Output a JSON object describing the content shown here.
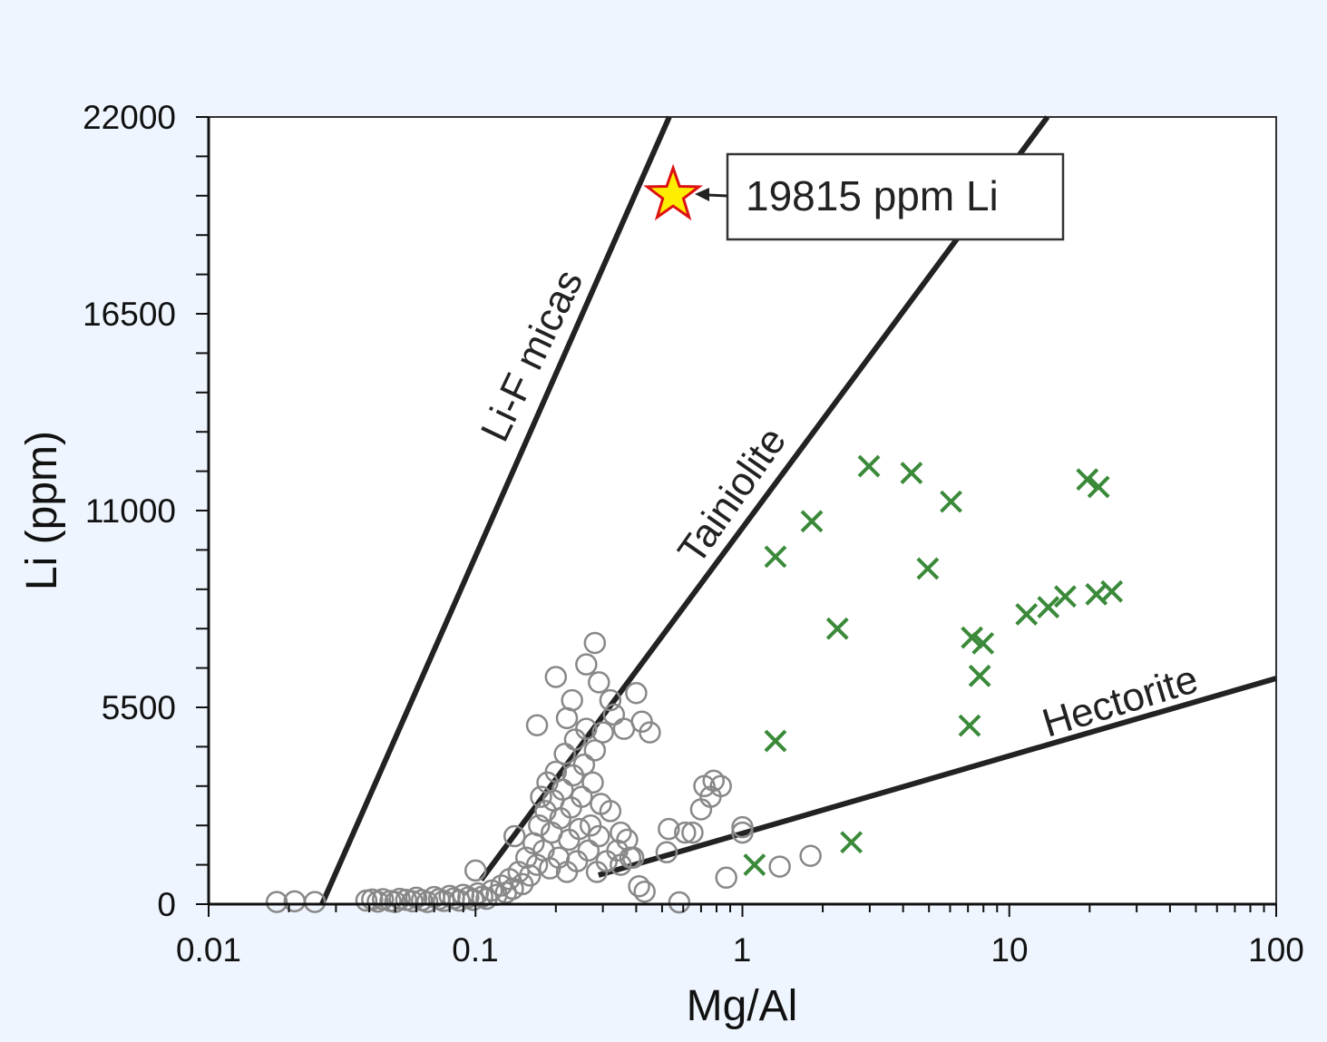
{
  "chart_data": {
    "type": "scatter",
    "xlabel": "Mg/Al",
    "ylabel": "Li (ppm)",
    "xscale": "log",
    "xlim": [
      0.01,
      100
    ],
    "ylim": [
      0,
      22000
    ],
    "x_ticks": [
      {
        "value": 0.01,
        "label": "0.01"
      },
      {
        "value": 0.1,
        "label": "0.1"
      },
      {
        "value": 1,
        "label": "1"
      },
      {
        "value": 10,
        "label": "10"
      },
      {
        "value": 100,
        "label": "100"
      }
    ],
    "y_ticks": [
      {
        "value": 0,
        "label": "0"
      },
      {
        "value": 5500,
        "label": "5500"
      },
      {
        "value": 11000,
        "label": "11000"
      },
      {
        "value": 16500,
        "label": "16500"
      },
      {
        "value": 22000,
        "label": "22000"
      }
    ],
    "y_minor_step": 1100,
    "grid": false,
    "colors": {
      "background": "#eef5fe",
      "plot_bg": "#ffffff",
      "circles": "#888888",
      "crosses": "#3a8a3a",
      "lines": "#222222",
      "star_fill": "#ffee00",
      "star_stroke": "#dd1111"
    },
    "reference_lines": [
      {
        "name": "Li-F micas",
        "label": "Li-F micas",
        "points": [
          [
            0.0266,
            0
          ],
          [
            0.532,
            22000
          ]
        ]
      },
      {
        "name": "Tainiolite",
        "label": "Tainiolite",
        "points": [
          [
            0.105,
            680
          ],
          [
            13.9,
            22000
          ]
        ]
      },
      {
        "name": "Hectorite",
        "label": "Hectorite",
        "points": [
          [
            0.289,
            810
          ],
          [
            100,
            6310
          ]
        ]
      }
    ],
    "series": [
      {
        "name": "circles",
        "marker": "open-circle",
        "points": [
          [
            0.018,
            60
          ],
          [
            0.021,
            80
          ],
          [
            0.025,
            60
          ],
          [
            0.039,
            100
          ],
          [
            0.041,
            130
          ],
          [
            0.043,
            70
          ],
          [
            0.045,
            140
          ],
          [
            0.048,
            90
          ],
          [
            0.05,
            60
          ],
          [
            0.052,
            150
          ],
          [
            0.055,
            120
          ],
          [
            0.058,
            80
          ],
          [
            0.06,
            180
          ],
          [
            0.063,
            110
          ],
          [
            0.066,
            60
          ],
          [
            0.07,
            200
          ],
          [
            0.073,
            140
          ],
          [
            0.076,
            90
          ],
          [
            0.08,
            230
          ],
          [
            0.083,
            160
          ],
          [
            0.087,
            100
          ],
          [
            0.09,
            260
          ],
          [
            0.094,
            190
          ],
          [
            0.098,
            120
          ],
          [
            0.1,
            940
          ],
          [
            0.102,
            300
          ],
          [
            0.106,
            210
          ],
          [
            0.11,
            150
          ],
          [
            0.115,
            380
          ],
          [
            0.12,
            260
          ],
          [
            0.125,
            520
          ],
          [
            0.13,
            320
          ],
          [
            0.134,
            700
          ],
          [
            0.138,
            430
          ],
          [
            0.14,
            1900
          ],
          [
            0.145,
            900
          ],
          [
            0.15,
            560
          ],
          [
            0.155,
            1300
          ],
          [
            0.16,
            800
          ],
          [
            0.165,
            1700
          ],
          [
            0.17,
            1100
          ],
          [
            0.173,
            2200
          ],
          [
            0.176,
            3000
          ],
          [
            0.18,
            1500
          ],
          [
            0.183,
            2600
          ],
          [
            0.186,
            3400
          ],
          [
            0.19,
            1000
          ],
          [
            0.193,
            2000
          ],
          [
            0.196,
            2900
          ],
          [
            0.2,
            3700
          ],
          [
            0.205,
            1300
          ],
          [
            0.208,
            2400
          ],
          [
            0.212,
            3200
          ],
          [
            0.216,
            4200
          ],
          [
            0.22,
            900
          ],
          [
            0.224,
            1800
          ],
          [
            0.228,
            2700
          ],
          [
            0.232,
            3600
          ],
          [
            0.236,
            4600
          ],
          [
            0.24,
            1200
          ],
          [
            0.245,
            2100
          ],
          [
            0.25,
            3000
          ],
          [
            0.255,
            3900
          ],
          [
            0.26,
            4900
          ],
          [
            0.265,
            1500
          ],
          [
            0.27,
            2200
          ],
          [
            0.275,
            3400
          ],
          [
            0.28,
            4300
          ],
          [
            0.285,
            900
          ],
          [
            0.29,
            1900
          ],
          [
            0.295,
            2800
          ],
          [
            0.3,
            4800
          ],
          [
            0.31,
            1200
          ],
          [
            0.32,
            2600
          ],
          [
            0.33,
            5300
          ],
          [
            0.34,
            1500
          ],
          [
            0.35,
            2000
          ],
          [
            0.36,
            4900
          ],
          [
            0.37,
            1800
          ],
          [
            0.38,
            1300
          ],
          [
            0.4,
            5900
          ],
          [
            0.42,
            5100
          ],
          [
            0.45,
            4800
          ],
          [
            0.2,
            6350
          ],
          [
            0.23,
            5700
          ],
          [
            0.26,
            6700
          ],
          [
            0.28,
            7300
          ],
          [
            0.29,
            6200
          ],
          [
            0.22,
            5200
          ],
          [
            0.17,
            5000
          ],
          [
            0.32,
            5700
          ],
          [
            0.35,
            1100
          ],
          [
            0.39,
            1300
          ],
          [
            0.41,
            500
          ],
          [
            0.43,
            350
          ],
          [
            0.52,
            1450
          ],
          [
            0.53,
            2100
          ],
          [
            0.58,
            50
          ],
          [
            0.61,
            2000
          ],
          [
            0.65,
            2000
          ],
          [
            0.7,
            2650
          ],
          [
            0.72,
            3300
          ],
          [
            0.78,
            3450
          ],
          [
            0.83,
            3300
          ],
          [
            0.76,
            3000
          ],
          [
            0.87,
            740
          ],
          [
            1.0,
            2150
          ],
          [
            1.0,
            2000
          ],
          [
            1.38,
            1050
          ],
          [
            1.8,
            1350
          ]
        ]
      },
      {
        "name": "crosses",
        "marker": "x",
        "points": [
          [
            1.11,
            1100
          ],
          [
            1.33,
            4560
          ],
          [
            1.33,
            9710
          ],
          [
            1.82,
            10700
          ],
          [
            2.27,
            7700
          ],
          [
            2.56,
            1730
          ],
          [
            2.98,
            12240
          ],
          [
            4.3,
            12050
          ],
          [
            4.95,
            9380
          ],
          [
            6.05,
            11250
          ],
          [
            7.1,
            4990
          ],
          [
            7.25,
            7450
          ],
          [
            7.75,
            6380
          ],
          [
            7.97,
            7290
          ],
          [
            11.6,
            8100
          ],
          [
            14.0,
            8300
          ],
          [
            16.2,
            8600
          ],
          [
            19.6,
            11870
          ],
          [
            21.2,
            8660
          ],
          [
            21.6,
            11660
          ],
          [
            24.2,
            8740
          ]
        ]
      },
      {
        "name": "star",
        "marker": "star",
        "points": [
          [
            0.55,
            19815
          ]
        ]
      }
    ],
    "annotation": {
      "text": "19815 ppm Li",
      "x": 0.55,
      "y": 19815
    }
  }
}
